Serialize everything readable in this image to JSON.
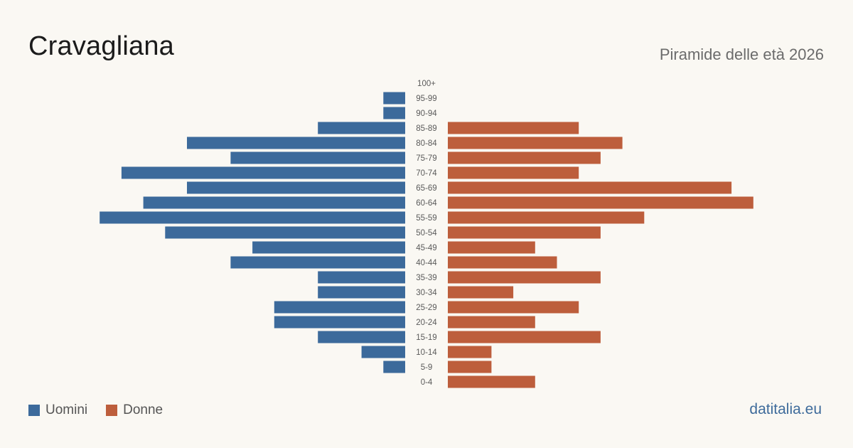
{
  "header": {
    "title": "Cravagliana",
    "subtitle": "Piramide delle età 2026"
  },
  "legend": {
    "men_label": "Uomini",
    "women_label": "Donne"
  },
  "brand": "datitalia.eu",
  "colors": {
    "men": "#3c6a9b",
    "women": "#bd5e3c",
    "background": "#faf8f3"
  },
  "chart_data": {
    "type": "bar",
    "orientation": "horizontal-pyramid",
    "categories": [
      "100+",
      "95-99",
      "90-94",
      "85-89",
      "80-84",
      "75-79",
      "70-74",
      "65-69",
      "60-64",
      "55-59",
      "50-54",
      "45-49",
      "40-44",
      "35-39",
      "30-34",
      "25-29",
      "20-24",
      "15-19",
      "10-14",
      "5-9",
      "0-4"
    ],
    "series": [
      {
        "name": "Uomini",
        "values": [
          0,
          1,
          1,
          4,
          10,
          8,
          13,
          10,
          12,
          14,
          11,
          7,
          8,
          4,
          4,
          6,
          6,
          4,
          2,
          1,
          0
        ]
      },
      {
        "name": "Donne",
        "values": [
          0,
          0,
          0,
          6,
          8,
          7,
          6,
          13,
          14,
          9,
          7,
          4,
          5,
          7,
          3,
          6,
          4,
          7,
          2,
          2,
          4
        ]
      }
    ]
  }
}
